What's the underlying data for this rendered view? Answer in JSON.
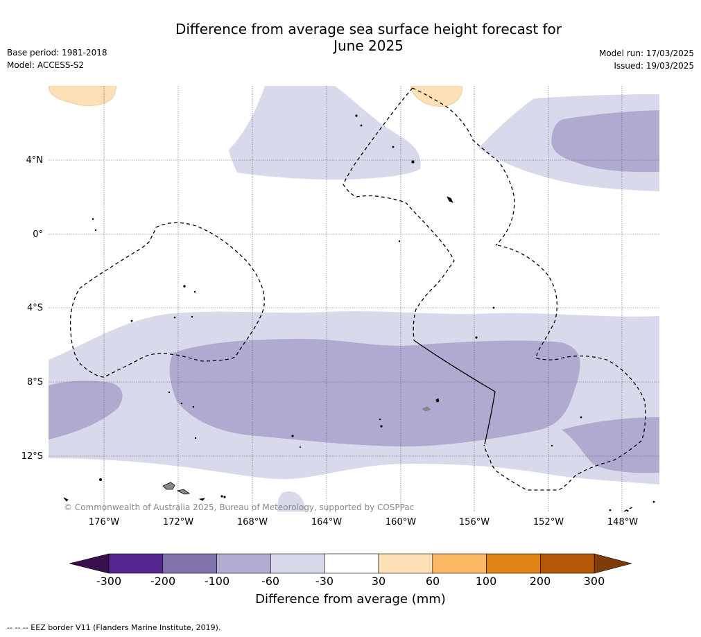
{
  "title_line1": "Difference from average sea surface height forecast for",
  "title_line2": "June 2025",
  "meta_left": {
    "base_period": "Base period: 1981-2018",
    "model": "Model: ACCESS-S2"
  },
  "meta_right": {
    "model_run": "Model run: 17/03/2025",
    "issued": "Issued: 19/03/2025"
  },
  "lat_ticks": [
    "4°N",
    "0°",
    "4°S",
    "8°S",
    "12°S"
  ],
  "lon_ticks": [
    "176°W",
    "172°W",
    "168°W",
    "164°W",
    "160°W",
    "156°W",
    "152°W",
    "148°W"
  ],
  "copyright": "© Commonwealth of Australia 2025, Bureau of Meteorology, supported by COSPPac",
  "colorbar": {
    "label": "Difference from average (mm)",
    "ticks": [
      "-300",
      "-200",
      "-100",
      "-60",
      "-30",
      "30",
      "60",
      "100",
      "200",
      "300"
    ],
    "colors": [
      "#3a0f4f",
      "#54278f",
      "#8073ac",
      "#b2abd2",
      "#d8daeb",
      "#ffffff",
      "#fee0b6",
      "#fdb863",
      "#e08214",
      "#b35806",
      "#7f3b08"
    ]
  },
  "footnote": "--  --  -- EEZ border V11 (Flanders Marine Institute, 2019)."
}
